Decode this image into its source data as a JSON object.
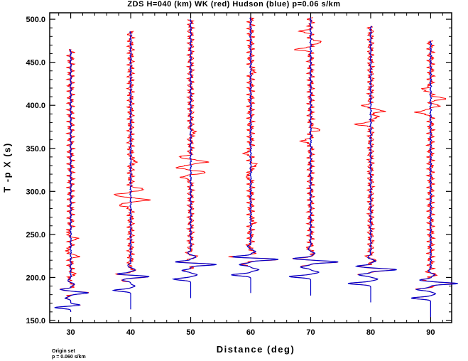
{
  "header": {
    "title": "ZDS H=040 (km) WK (red) Hudson (blue) p=0.06 s/km"
  },
  "footer": {
    "note_line1": "Origin set",
    "note_line2": "p = 0.060 s/km"
  },
  "chart_data": {
    "type": "line",
    "title": "ZDS H=040 (km) WK (red) Hudson (blue) p=0.06 s/km",
    "xlabel": "Distance (deg)",
    "ylabel": "T -p X (s)",
    "xlim": [
      26.5,
      93.5
    ],
    "ylim": [
      147.5,
      507.5
    ],
    "x_ticks": [
      30,
      40,
      50,
      60,
      70,
      80,
      90
    ],
    "x_tick_labels": [
      "30",
      "40",
      "50",
      "60",
      "70",
      "80",
      "90"
    ],
    "y_ticks": [
      150,
      200,
      250,
      300,
      350,
      400,
      450,
      500
    ],
    "y_tick_labels": [
      "150.0",
      "200.0",
      "250.0",
      "300.0",
      "350.0",
      "400.0",
      "450.0",
      "500.0"
    ],
    "grid": false,
    "legend": "none",
    "colors": {
      "red": "#ff0000",
      "blue": "#0000cc",
      "axis": "#000000"
    },
    "series": [
      {
        "name": "WK",
        "color": "red"
      },
      {
        "name": "Hudson",
        "color": "blue"
      }
    ],
    "traces": [
      {
        "distance": 30,
        "t_start": 160,
        "t_end": 465,
        "wavelets": [
          {
            "t": 165,
            "a": -3.0,
            "w": 1.4
          },
          {
            "t": 168,
            "a": 1.8,
            "w": 1.2
          },
          {
            "t": 176,
            "a": -1.0,
            "w": 1.5
          },
          {
            "t": 182,
            "a": 3.2,
            "w": 1.5
          },
          {
            "t": 186,
            "a": -1.8,
            "w": 1.3
          },
          {
            "t": 192,
            "a": 0.8,
            "w": 1.6
          },
          {
            "t": 196,
            "a": -0.6,
            "w": 1.6
          }
        ]
      },
      {
        "distance": 40,
        "t_start": 163,
        "t_end": 486,
        "wavelets": [
          {
            "t": 185,
            "a": -3.2,
            "w": 1.6
          },
          {
            "t": 190,
            "a": 0.8,
            "w": 1.5
          },
          {
            "t": 197,
            "a": -1.6,
            "w": 1.6
          },
          {
            "t": 201,
            "a": 3.5,
            "w": 1.4
          },
          {
            "t": 204,
            "a": -2.5,
            "w": 1.4
          },
          {
            "t": 209,
            "a": 0.8,
            "w": 1.6
          },
          {
            "t": 214,
            "a": -0.5,
            "w": 2.0
          }
        ]
      },
      {
        "distance": 50,
        "t_start": 176,
        "t_end": 500,
        "wavelets": [
          {
            "t": 198,
            "a": -3.2,
            "w": 1.6
          },
          {
            "t": 203,
            "a": 1.2,
            "w": 1.6
          },
          {
            "t": 208,
            "a": -1.6,
            "w": 1.6
          },
          {
            "t": 215,
            "a": 4.8,
            "w": 1.5
          },
          {
            "t": 218,
            "a": -3.0,
            "w": 1.4
          },
          {
            "t": 224,
            "a": 0.9,
            "w": 1.8
          },
          {
            "t": 229,
            "a": -0.5,
            "w": 2.0
          }
        ]
      },
      {
        "distance": 60,
        "t_start": 182,
        "t_end": 502,
        "wavelets": [
          {
            "t": 203,
            "a": -3.6,
            "w": 1.6
          },
          {
            "t": 209,
            "a": 1.5,
            "w": 1.6
          },
          {
            "t": 215,
            "a": -2.0,
            "w": 1.6
          },
          {
            "t": 221,
            "a": 5.2,
            "w": 1.5
          },
          {
            "t": 224,
            "a": -3.6,
            "w": 1.4
          },
          {
            "t": 230,
            "a": 0.9,
            "w": 1.8
          },
          {
            "t": 236,
            "a": -0.5,
            "w": 2.0
          }
        ]
      },
      {
        "distance": 70,
        "t_start": 179,
        "t_end": 502,
        "wavelets": [
          {
            "t": 201,
            "a": -4.0,
            "w": 1.6
          },
          {
            "t": 206,
            "a": 1.5,
            "w": 1.6
          },
          {
            "t": 212,
            "a": -2.0,
            "w": 1.6
          },
          {
            "t": 218,
            "a": 5.0,
            "w": 1.5
          },
          {
            "t": 222,
            "a": -3.2,
            "w": 1.4
          },
          {
            "t": 228,
            "a": 0.8,
            "w": 1.8
          },
          {
            "t": 233,
            "a": -0.5,
            "w": 2.0
          }
        ]
      },
      {
        "distance": 80,
        "t_start": 171,
        "t_end": 492,
        "wavelets": [
          {
            "t": 193,
            "a": -4.2,
            "w": 1.6
          },
          {
            "t": 198,
            "a": 1.3,
            "w": 1.6
          },
          {
            "t": 203,
            "a": -2.2,
            "w": 1.6
          },
          {
            "t": 209,
            "a": 5.0,
            "w": 1.5
          },
          {
            "t": 213,
            "a": -2.8,
            "w": 1.4
          },
          {
            "t": 219,
            "a": 0.8,
            "w": 1.8
          },
          {
            "t": 224,
            "a": -0.5,
            "w": 2.0
          }
        ]
      },
      {
        "distance": 90,
        "t_start": 154,
        "t_end": 475,
        "wavelets": [
          {
            "t": 176,
            "a": -3.6,
            "w": 1.6
          },
          {
            "t": 181,
            "a": 0.9,
            "w": 1.6
          },
          {
            "t": 186,
            "a": -2.6,
            "w": 1.6
          },
          {
            "t": 193,
            "a": 5.0,
            "w": 1.5
          },
          {
            "t": 197,
            "a": -2.0,
            "w": 1.4
          },
          {
            "t": 203,
            "a": 0.8,
            "w": 1.8
          },
          {
            "t": 207,
            "a": -0.4,
            "w": 2.0
          }
        ]
      }
    ],
    "wk_coda": [
      {
        "distance": 30,
        "extra": [
          {
            "t": 205,
            "a": 0.7,
            "w": 2
          },
          {
            "t": 225,
            "a": 1.2,
            "w": 2
          },
          {
            "t": 231,
            "a": -1.0,
            "w": 2
          },
          {
            "t": 245,
            "a": 0.9,
            "w": 2
          },
          {
            "t": 252,
            "a": -0.8,
            "w": 2
          }
        ]
      },
      {
        "distance": 40,
        "extra": [
          {
            "t": 284,
            "a": -2.5,
            "w": 2
          },
          {
            "t": 290,
            "a": 3.0,
            "w": 2
          },
          {
            "t": 296,
            "a": -3.2,
            "w": 2
          },
          {
            "t": 302,
            "a": 2.6,
            "w": 2
          },
          {
            "t": 335,
            "a": 1.2,
            "w": 2
          }
        ]
      },
      {
        "distance": 50,
        "extra": [
          {
            "t": 316,
            "a": -1.8,
            "w": 2
          },
          {
            "t": 322,
            "a": 2.5,
            "w": 2
          },
          {
            "t": 328,
            "a": -2.8,
            "w": 2
          },
          {
            "t": 334,
            "a": 3.0,
            "w": 2
          },
          {
            "t": 340,
            "a": -1.8,
            "w": 2
          },
          {
            "t": 368,
            "a": 1.0,
            "w": 2
          }
        ]
      },
      {
        "distance": 60,
        "extra": [
          {
            "t": 265,
            "a": 0.8,
            "w": 2
          },
          {
            "t": 318,
            "a": -1.0,
            "w": 2
          },
          {
            "t": 330,
            "a": 1.2,
            "w": 2
          },
          {
            "t": 345,
            "a": -1.2,
            "w": 2
          },
          {
            "t": 440,
            "a": 1.0,
            "w": 2
          }
        ]
      },
      {
        "distance": 70,
        "extra": [
          {
            "t": 358,
            "a": -1.8,
            "w": 2
          },
          {
            "t": 372,
            "a": 1.6,
            "w": 2
          },
          {
            "t": 465,
            "a": -2.4,
            "w": 2
          },
          {
            "t": 473,
            "a": 2.2,
            "w": 2
          },
          {
            "t": 486,
            "a": -1.6,
            "w": 2
          }
        ]
      },
      {
        "distance": 80,
        "extra": [
          {
            "t": 378,
            "a": -2.4,
            "w": 2
          },
          {
            "t": 386,
            "a": 1.5,
            "w": 2
          },
          {
            "t": 393,
            "a": 2.6,
            "w": 2
          },
          {
            "t": 400,
            "a": -1.2,
            "w": 2
          }
        ]
      },
      {
        "distance": 90,
        "extra": [
          {
            "t": 392,
            "a": -3.0,
            "w": 2
          },
          {
            "t": 400,
            "a": 1.4,
            "w": 2
          },
          {
            "t": 408,
            "a": 3.0,
            "w": 2
          },
          {
            "t": 419,
            "a": -1.8,
            "w": 2
          }
        ]
      }
    ]
  }
}
